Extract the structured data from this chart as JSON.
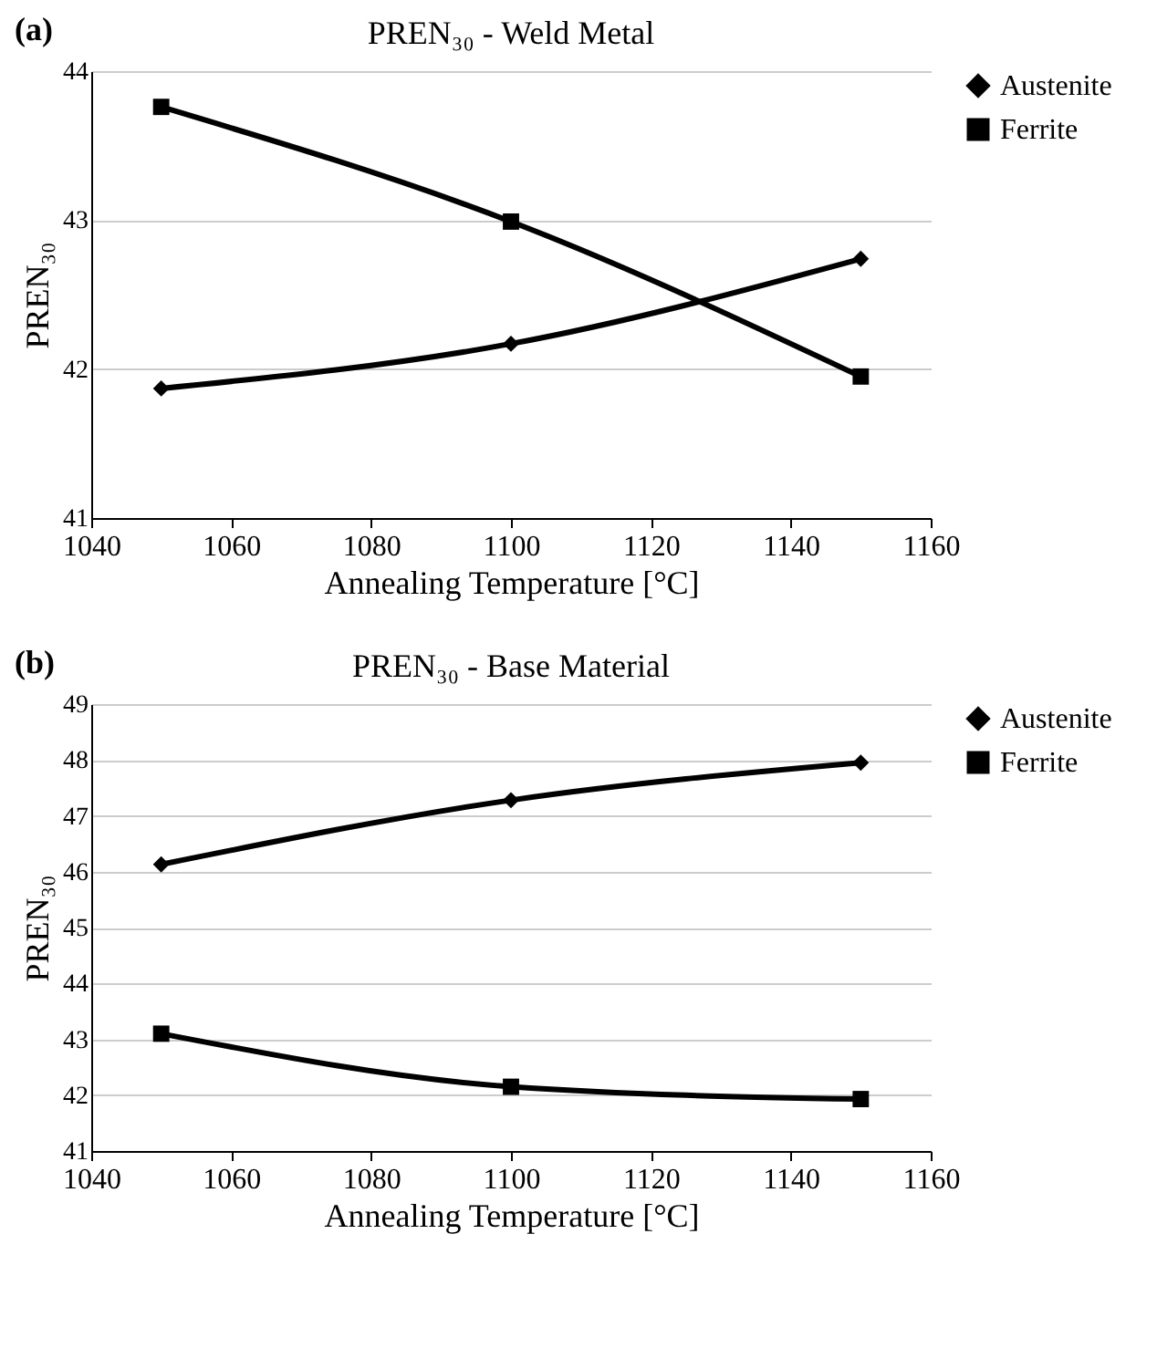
{
  "chart_data": [
    {
      "type": "line",
      "title": "PREN₃₀ - Weld Metal",
      "xlabel": "Annealing Temperature [°C]",
      "ylabel": "PREN₃₀",
      "annotations": [
        "(a)"
      ],
      "x": [
        1050,
        1100,
        1150
      ],
      "series": [
        {
          "name": "Austenite",
          "color": "#000000",
          "marker": "diamond",
          "values": [
            41.87,
            42.17,
            42.74
          ]
        },
        {
          "name": "Ferrite",
          "color": "#000000",
          "marker": "square",
          "values": [
            43.76,
            42.99,
            41.95
          ]
        }
      ],
      "xlim": [
        1040,
        1160
      ],
      "xticks": [
        1040,
        1060,
        1080,
        1100,
        1120,
        1140,
        1160
      ],
      "ylim": [
        41,
        44
      ],
      "yticks": [
        41,
        42,
        43,
        44
      ],
      "grid": "y",
      "legend": "right"
    },
    {
      "type": "line",
      "title": "PREN₃₀ - Base Material",
      "xlabel": "Annealing Temperature [°C]",
      "ylabel": "PREN₃₀",
      "annotations": [
        "(b)"
      ],
      "x": [
        1050,
        1100,
        1150
      ],
      "series": [
        {
          "name": "Austenite",
          "color": "#000000",
          "marker": "diamond",
          "values": [
            46.13,
            47.28,
            47.95
          ]
        },
        {
          "name": "Ferrite",
          "color": "#000000",
          "marker": "square",
          "values": [
            43.1,
            42.15,
            41.93
          ]
        }
      ],
      "xlim": [
        1040,
        1160
      ],
      "xticks": [
        1040,
        1060,
        1080,
        1100,
        1120,
        1140,
        1160
      ],
      "ylim": [
        41,
        49
      ],
      "yticks": [
        41,
        42,
        43,
        44,
        45,
        46,
        47,
        48,
        49
      ],
      "grid": "y",
      "legend": "right"
    }
  ]
}
